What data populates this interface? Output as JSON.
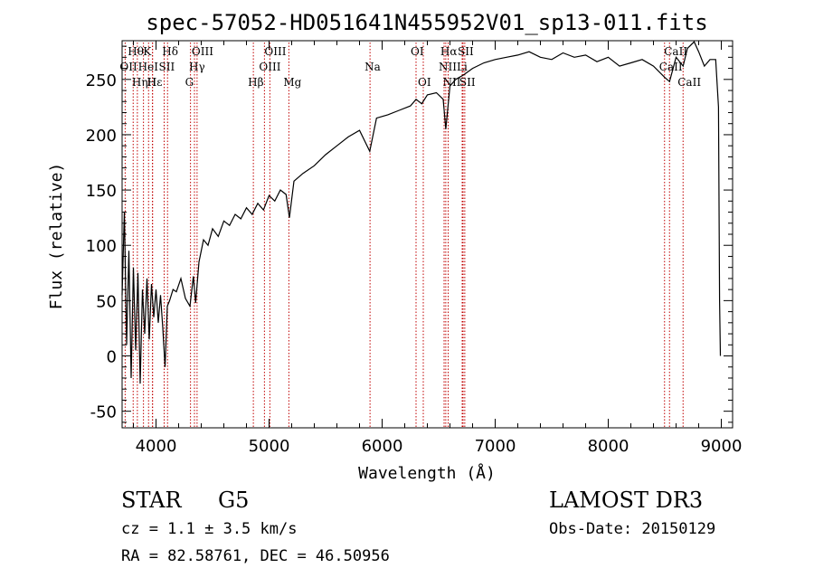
{
  "chart_data": {
    "type": "line",
    "title": "spec-57052-HD051641N455952V01_sp13-011.fits",
    "xlabel": "Wavelength (Å)",
    "ylabel": "Flux (relative)",
    "xlim": [
      3700,
      9100
    ],
    "ylim": [
      -65,
      285
    ],
    "x_ticks": [
      4000,
      5000,
      6000,
      7000,
      8000,
      9000
    ],
    "y_ticks": [
      -50,
      0,
      50,
      100,
      150,
      200,
      250
    ],
    "grid": false,
    "series": [
      {
        "points": [
          [
            3700,
            55
          ],
          [
            3720,
            130
          ],
          [
            3740,
            10
          ],
          [
            3760,
            95
          ],
          [
            3780,
            -20
          ],
          [
            3800,
            80
          ],
          [
            3820,
            5
          ],
          [
            3840,
            75
          ],
          [
            3860,
            -25
          ],
          [
            3880,
            60
          ],
          [
            3900,
            20
          ],
          [
            3920,
            70
          ],
          [
            3940,
            15
          ],
          [
            3960,
            65
          ],
          [
            3980,
            35
          ],
          [
            4000,
            60
          ],
          [
            4020,
            30
          ],
          [
            4040,
            55
          ],
          [
            4060,
            25
          ],
          [
            4080,
            -10
          ],
          [
            4100,
            45
          ],
          [
            4120,
            50
          ],
          [
            4150,
            60
          ],
          [
            4180,
            58
          ],
          [
            4220,
            70
          ],
          [
            4260,
            52
          ],
          [
            4300,
            45
          ],
          [
            4330,
            72
          ],
          [
            4350,
            48
          ],
          [
            4380,
            85
          ],
          [
            4420,
            105
          ],
          [
            4460,
            100
          ],
          [
            4500,
            115
          ],
          [
            4550,
            108
          ],
          [
            4600,
            122
          ],
          [
            4650,
            118
          ],
          [
            4700,
            128
          ],
          [
            4750,
            124
          ],
          [
            4800,
            134
          ],
          [
            4850,
            128
          ],
          [
            4900,
            138
          ],
          [
            4950,
            132
          ],
          [
            5000,
            145
          ],
          [
            5050,
            140
          ],
          [
            5100,
            150
          ],
          [
            5150,
            146
          ],
          [
            5180,
            125
          ],
          [
            5220,
            158
          ],
          [
            5300,
            165
          ],
          [
            5400,
            172
          ],
          [
            5500,
            182
          ],
          [
            5600,
            190
          ],
          [
            5700,
            198
          ],
          [
            5800,
            204
          ],
          [
            5890,
            185
          ],
          [
            5950,
            215
          ],
          [
            6050,
            218
          ],
          [
            6150,
            222
          ],
          [
            6250,
            226
          ],
          [
            6300,
            232
          ],
          [
            6350,
            228
          ],
          [
            6400,
            236
          ],
          [
            6480,
            238
          ],
          [
            6540,
            232
          ],
          [
            6563,
            205
          ],
          [
            6600,
            244
          ],
          [
            6650,
            250
          ],
          [
            6720,
            254
          ],
          [
            6800,
            260
          ],
          [
            6900,
            265
          ],
          [
            7000,
            268
          ],
          [
            7100,
            270
          ],
          [
            7200,
            272
          ],
          [
            7300,
            275
          ],
          [
            7400,
            270
          ],
          [
            7500,
            268
          ],
          [
            7600,
            274
          ],
          [
            7700,
            270
          ],
          [
            7800,
            272
          ],
          [
            7900,
            266
          ],
          [
            8000,
            270
          ],
          [
            8100,
            262
          ],
          [
            8200,
            265
          ],
          [
            8300,
            268
          ],
          [
            8400,
            262
          ],
          [
            8498,
            252
          ],
          [
            8542,
            248
          ],
          [
            8600,
            270
          ],
          [
            8662,
            262
          ],
          [
            8700,
            278
          ],
          [
            8760,
            284
          ],
          [
            8800,
            275
          ],
          [
            8850,
            262
          ],
          [
            8900,
            268
          ],
          [
            8950,
            268
          ],
          [
            8975,
            225
          ],
          [
            8985,
            50
          ],
          [
            8992,
            0
          ]
        ]
      }
    ],
    "lines": [
      {
        "label": "Hθ",
        "x": 3798,
        "row": 1
      },
      {
        "label": "OII",
        "x": 3727,
        "row": 2
      },
      {
        "label": "Hη",
        "x": 3835,
        "row": 3
      },
      {
        "label": "K",
        "x": 3934,
        "row": 1
      },
      {
        "label": "HeI",
        "x": 3889,
        "row": 2
      },
      {
        "label": "Hε",
        "x": 3970,
        "row": 3
      },
      {
        "label": "H",
        "x": 3968,
        "row": 3
      },
      {
        "label": "Hδ",
        "x": 4102,
        "row": 1
      },
      {
        "label": "SII",
        "x": 4072,
        "row": 2
      },
      {
        "label": "OIII",
        "x": 4363,
        "row": 1
      },
      {
        "label": "Hγ",
        "x": 4340,
        "row": 2
      },
      {
        "label": "G",
        "x": 4305,
        "row": 3
      },
      {
        "label": "OIII",
        "x": 5007,
        "row": 1
      },
      {
        "label": "OIII",
        "x": 4959,
        "row": 2
      },
      {
        "label": "Hβ",
        "x": 4861,
        "row": 3
      },
      {
        "label": "Mg",
        "x": 5175,
        "row": 3
      },
      {
        "label": "Na",
        "x": 5893,
        "row": 2
      },
      {
        "label": "OI",
        "x": 6300,
        "row": 1
      },
      {
        "label": "OI",
        "x": 6364,
        "row": 3
      },
      {
        "label": "Hα",
        "x": 6563,
        "row": 1
      },
      {
        "label": "SII",
        "x": 6716,
        "row": 1
      },
      {
        "label": "NII",
        "x": 6548,
        "row": 2
      },
      {
        "label": "Li",
        "x": 6708,
        "row": 2
      },
      {
        "label": "NII",
        "x": 6584,
        "row": 3
      },
      {
        "label": "SII",
        "x": 6731,
        "row": 3
      },
      {
        "label": "CaII",
        "x": 8542,
        "row": 1
      },
      {
        "label": "CaII",
        "x": 8498,
        "row": 2
      },
      {
        "label": "CaII",
        "x": 8662,
        "row": 3
      }
    ]
  },
  "info": {
    "object_class": "STAR",
    "subclass": "G5",
    "survey": "LAMOST DR3",
    "cz": "cz = 1.1 ± 3.5 km/s",
    "obs_date": "Obs-Date: 20150129",
    "radec": "RA =  82.58761, DEC =  46.50956"
  }
}
